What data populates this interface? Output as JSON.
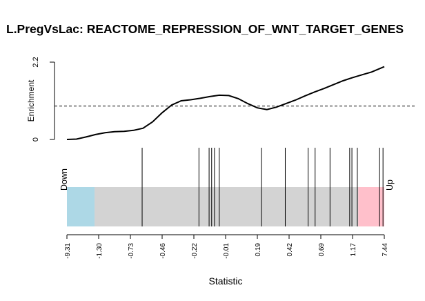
{
  "chart_data": {
    "type": "barcode",
    "title": "L.PregVsLac: REACTOME_REPRESSION_OF_WNT_TARGET_GENES",
    "xlabel": "Statistic",
    "ylabel": "Enrichment",
    "enrichment_ylim": [
      0,
      2.2
    ],
    "enrichment_yticks": [
      0,
      2.2
    ],
    "expected_enrichment": 0.95,
    "quantile_tick_labels": [
      "-9.31",
      "-1.30",
      "-0.73",
      "-0.46",
      "-0.22",
      "-0.01",
      "0.19",
      "0.42",
      "0.69",
      "1.17",
      "7.44"
    ],
    "down_label": "Down",
    "up_label": "Up",
    "region_fractions": {
      "down_end": 0.087,
      "up_start": 0.918
    },
    "colors": {
      "down": "#add8e6",
      "middle": "#d3d3d3",
      "up": "#ffc0cb",
      "line": "#000000"
    },
    "gene_positions": [
      0.237,
      0.416,
      0.448,
      0.456,
      0.465,
      0.48,
      0.613,
      0.688,
      0.76,
      0.782,
      0.829,
      0.891,
      0.898,
      0.915,
      0.985,
      0.996
    ],
    "enrichment_curve": [
      [
        0.0,
        0.0
      ],
      [
        0.03,
        0.01
      ],
      [
        0.06,
        0.07
      ],
      [
        0.09,
        0.14
      ],
      [
        0.12,
        0.19
      ],
      [
        0.15,
        0.22
      ],
      [
        0.18,
        0.23
      ],
      [
        0.21,
        0.26
      ],
      [
        0.24,
        0.32
      ],
      [
        0.27,
        0.5
      ],
      [
        0.3,
        0.76
      ],
      [
        0.33,
        0.98
      ],
      [
        0.36,
        1.1
      ],
      [
        0.39,
        1.13
      ],
      [
        0.42,
        1.17
      ],
      [
        0.45,
        1.22
      ],
      [
        0.48,
        1.26
      ],
      [
        0.51,
        1.25
      ],
      [
        0.54,
        1.16
      ],
      [
        0.57,
        1.02
      ],
      [
        0.6,
        0.9
      ],
      [
        0.63,
        0.85
      ],
      [
        0.66,
        0.92
      ],
      [
        0.69,
        1.02
      ],
      [
        0.72,
        1.12
      ],
      [
        0.75,
        1.24
      ],
      [
        0.78,
        1.35
      ],
      [
        0.81,
        1.45
      ],
      [
        0.84,
        1.56
      ],
      [
        0.87,
        1.67
      ],
      [
        0.9,
        1.76
      ],
      [
        0.93,
        1.84
      ],
      [
        0.96,
        1.92
      ],
      [
        1.0,
        2.07
      ]
    ]
  }
}
